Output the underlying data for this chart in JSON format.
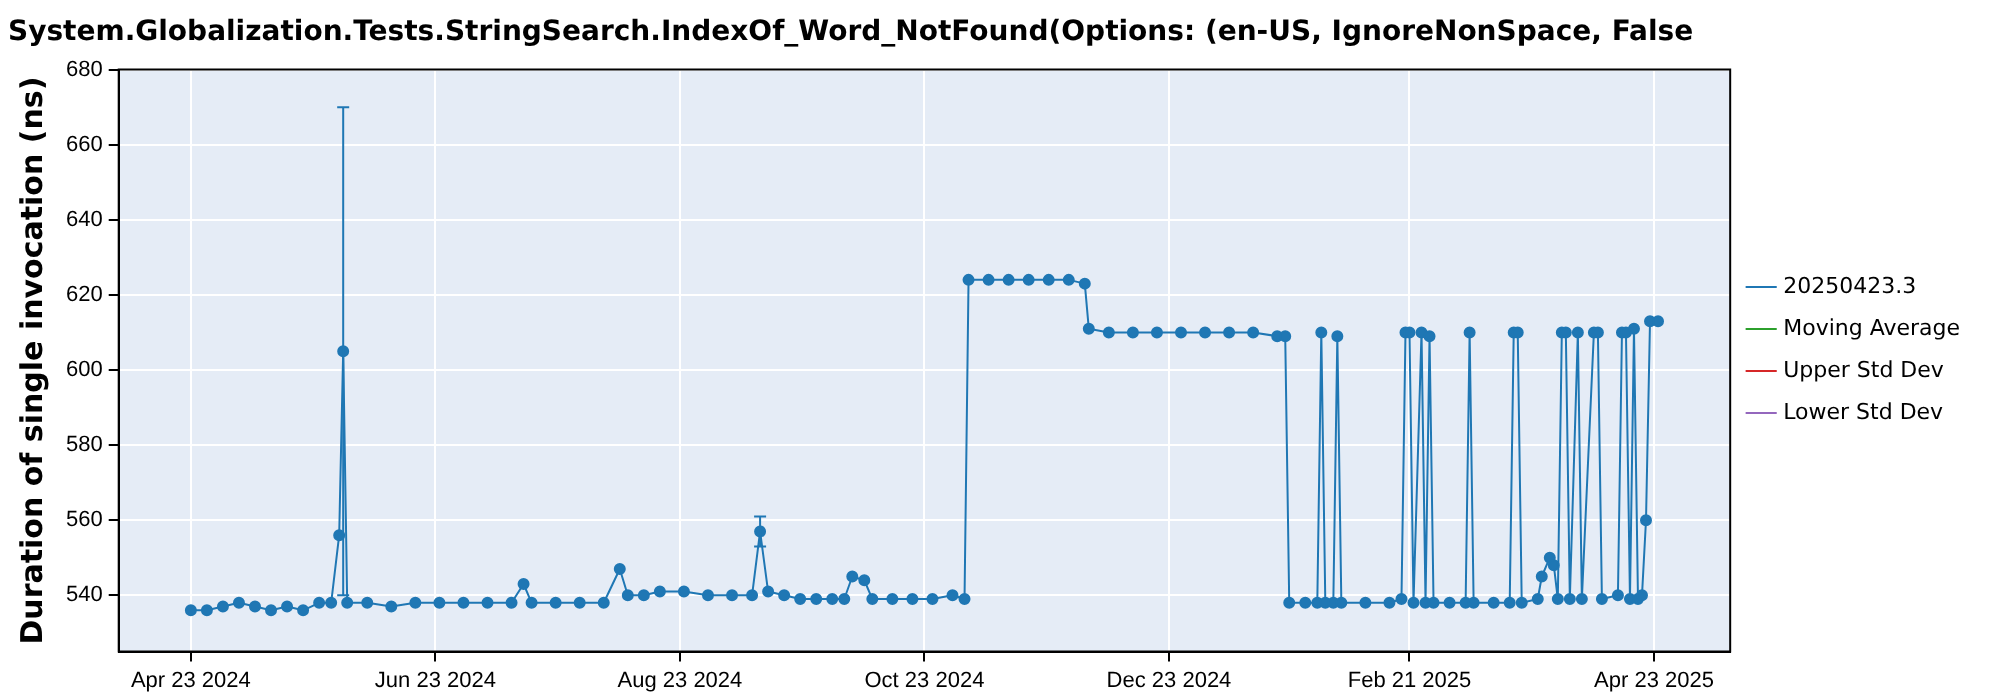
{
  "chart_data": {
    "type": "line",
    "title": "System.Globalization.Tests.StringSearch.IndexOf_Word_NotFound(Options: (en-US, IgnoreNonSpace, False",
    "ylabel": "Duration of single invocation (ns)",
    "x": [
      "2024-04-23",
      "2024-04-27",
      "2024-05-01",
      "2024-05-05",
      "2024-05-09",
      "2024-05-13",
      "2024-05-17",
      "2024-05-21",
      "2024-05-25",
      "2024-05-28",
      "2024-05-30",
      "2024-05-31",
      "2024-06-01",
      "2024-06-06",
      "2024-06-12",
      "2024-06-18",
      "2024-06-24",
      "2024-06-30",
      "2024-07-06",
      "2024-07-12",
      "2024-07-15",
      "2024-07-17",
      "2024-07-23",
      "2024-07-29",
      "2024-08-04",
      "2024-08-08",
      "2024-08-10",
      "2024-08-14",
      "2024-08-18",
      "2024-08-24",
      "2024-08-30",
      "2024-09-05",
      "2024-09-10",
      "2024-09-12",
      "2024-09-14",
      "2024-09-18",
      "2024-09-22",
      "2024-09-26",
      "2024-09-30",
      "2024-10-03",
      "2024-10-05",
      "2024-10-08",
      "2024-10-10",
      "2024-10-15",
      "2024-10-20",
      "2024-10-25",
      "2024-10-30",
      "2024-11-02",
      "2024-11-03",
      "2024-11-08",
      "2024-11-13",
      "2024-11-18",
      "2024-11-23",
      "2024-11-28",
      "2024-12-02",
      "2024-12-03",
      "2024-12-08",
      "2024-12-14",
      "2024-12-20",
      "2024-12-26",
      "2025-01-01",
      "2025-01-07",
      "2025-01-13",
      "2025-01-19",
      "2025-01-21",
      "2025-01-22",
      "2025-01-26",
      "2025-01-29",
      "2025-01-30",
      "2025-01-31",
      "2025-02-02",
      "2025-02-03",
      "2025-02-04",
      "2025-02-10",
      "2025-02-16",
      "2025-02-19",
      "2025-02-20",
      "2025-02-21",
      "2025-02-22",
      "2025-02-24",
      "2025-02-25",
      "2025-02-26",
      "2025-02-27",
      "2025-03-03",
      "2025-03-07",
      "2025-03-08",
      "2025-03-09",
      "2025-03-14",
      "2025-03-18",
      "2025-03-19",
      "2025-03-20",
      "2025-03-21",
      "2025-03-25",
      "2025-03-26",
      "2025-03-28",
      "2025-03-29",
      "2025-03-30",
      "2025-03-31",
      "2025-04-01",
      "2025-04-02",
      "2025-04-04",
      "2025-04-05",
      "2025-04-08",
      "2025-04-09",
      "2025-04-10",
      "2025-04-14",
      "2025-04-15",
      "2025-04-16",
      "2025-04-17",
      "2025-04-18",
      "2025-04-19",
      "2025-04-20",
      "2025-04-21",
      "2025-04-22",
      "2025-04-24"
    ],
    "series": [
      {
        "name": "20250423.3",
        "color": "#1f77b4",
        "values": [
          536,
          536,
          537,
          538,
          537,
          536,
          537,
          536,
          538,
          538,
          556,
          605,
          538,
          538,
          537,
          538,
          538,
          538,
          538,
          538,
          543,
          538,
          538,
          538,
          538,
          547,
          540,
          540,
          541,
          541,
          540,
          540,
          540,
          557,
          541,
          540,
          539,
          539,
          539,
          539,
          545,
          544,
          539,
          539,
          539,
          539,
          540,
          539,
          624,
          624,
          624,
          624,
          624,
          624,
          623,
          611,
          610,
          610,
          610,
          610,
          610,
          610,
          610,
          609,
          609,
          538,
          538,
          538,
          610,
          538,
          538,
          609,
          538,
          538,
          538,
          539,
          610,
          610,
          538,
          610,
          538,
          609,
          538,
          538,
          538,
          610,
          538,
          538,
          538,
          610,
          610,
          538,
          539,
          545,
          550,
          548,
          539,
          610,
          610,
          539,
          610,
          539,
          610,
          610,
          539,
          540,
          610,
          610,
          539,
          611,
          539,
          540,
          560,
          613,
          613
        ],
        "errors": [
          null,
          null,
          null,
          null,
          null,
          null,
          null,
          null,
          null,
          null,
          null,
          [
            540,
            670
          ],
          null,
          null,
          null,
          null,
          null,
          null,
          null,
          null,
          null,
          null,
          null,
          null,
          null,
          null,
          null,
          null,
          null,
          null,
          null,
          null,
          null,
          [
            553,
            561
          ],
          null,
          null,
          null,
          null,
          null,
          null,
          null,
          null,
          null,
          null,
          null,
          null,
          null,
          null,
          null,
          null,
          null,
          null,
          null,
          null,
          null,
          null,
          null,
          null,
          null,
          null,
          null,
          null,
          null,
          null,
          null,
          null,
          null,
          null,
          null,
          null,
          null,
          null,
          null,
          null,
          null,
          null,
          null,
          null,
          null,
          null,
          null,
          null,
          null,
          null,
          null,
          null,
          null,
          null,
          null,
          null,
          null,
          null,
          null,
          null,
          null,
          null,
          null,
          null,
          null,
          null,
          null,
          null,
          null,
          null,
          null,
          null,
          null,
          null,
          null,
          null,
          null,
          null,
          null,
          null,
          null
        ]
      },
      {
        "name": "Moving Average",
        "color": "#2ca02c",
        "values": [
          null,
          null,
          null,
          null,
          null,
          null,
          null,
          null,
          null,
          null,
          null,
          null,
          null,
          null,
          null,
          null,
          null,
          null,
          null,
          null,
          null,
          null,
          null,
          null,
          null,
          null,
          null,
          null,
          null,
          null,
          null,
          null,
          null,
          null,
          null,
          null,
          null,
          null,
          null,
          null,
          null,
          null,
          null,
          null,
          null,
          null,
          null,
          null,
          null,
          null,
          null,
          null,
          null,
          null,
          null,
          null,
          null,
          null,
          null,
          null,
          null,
          null,
          null,
          null,
          null,
          null,
          null,
          null,
          null,
          null,
          null,
          null,
          null,
          null,
          null,
          null,
          null,
          null,
          null,
          null,
          null,
          null,
          null,
          null,
          null,
          null,
          null,
          null,
          null,
          null,
          null,
          null,
          null,
          null,
          null,
          null,
          null,
          null,
          null,
          null,
          null,
          null,
          null,
          null,
          null,
          null,
          null,
          null,
          null,
          null,
          null,
          null,
          null,
          null,
          null
        ]
      },
      {
        "name": "Upper Std Dev",
        "color": "#d62728",
        "values": [
          null,
          null,
          null,
          null,
          null,
          null,
          null,
          null,
          null,
          null,
          null,
          null,
          null,
          null,
          null,
          null,
          null,
          null,
          null,
          null,
          null,
          null,
          null,
          null,
          null,
          null,
          null,
          null,
          null,
          null,
          null,
          null,
          null,
          null,
          null,
          null,
          null,
          null,
          null,
          null,
          null,
          null,
          null,
          null,
          null,
          null,
          null,
          null,
          null,
          null,
          null,
          null,
          null,
          null,
          null,
          null,
          null,
          null,
          null,
          null,
          null,
          null,
          null,
          null,
          null,
          null,
          null,
          null,
          null,
          null,
          null,
          null,
          null,
          null,
          null,
          null,
          null,
          null,
          null,
          null,
          null,
          null,
          null,
          null,
          null,
          null,
          null,
          null,
          null,
          null,
          null,
          null,
          null,
          null,
          null,
          null,
          null,
          null,
          null,
          null,
          null,
          null,
          null,
          null,
          null,
          null,
          null,
          null,
          null,
          null,
          null,
          null,
          null,
          null,
          null
        ]
      },
      {
        "name": "Lower Std Dev",
        "color": "#9467bd",
        "values": [
          null,
          null,
          null,
          null,
          null,
          null,
          null,
          null,
          null,
          null,
          null,
          null,
          null,
          null,
          null,
          null,
          null,
          null,
          null,
          null,
          null,
          null,
          null,
          null,
          null,
          null,
          null,
          null,
          null,
          null,
          null,
          null,
          null,
          null,
          null,
          null,
          null,
          null,
          null,
          null,
          null,
          null,
          null,
          null,
          null,
          null,
          null,
          null,
          null,
          null,
          null,
          null,
          null,
          null,
          null,
          null,
          null,
          null,
          null,
          null,
          null,
          null,
          null,
          null,
          null,
          null,
          null,
          null,
          null,
          null,
          null,
          null,
          null,
          null,
          null,
          null,
          null,
          null,
          null,
          null,
          null,
          null,
          null,
          null,
          null,
          null,
          null,
          null,
          null,
          null,
          null,
          null,
          null,
          null,
          null,
          null,
          null,
          null,
          null,
          null,
          null,
          null,
          null,
          null,
          null,
          null,
          null,
          null,
          null,
          null,
          null,
          null,
          null,
          null,
          null
        ]
      }
    ],
    "xlim": [
      "2024-04-05",
      "2025-05-12"
    ],
    "xticks": [
      {
        "value": "2024-04-23",
        "label": "Apr 23 2024"
      },
      {
        "value": "2024-06-23",
        "label": "Jun 23 2024"
      },
      {
        "value": "2024-08-23",
        "label": "Aug 23 2024"
      },
      {
        "value": "2024-10-23",
        "label": "Oct 23 2024"
      },
      {
        "value": "2024-12-23",
        "label": "Dec 23 2024"
      },
      {
        "value": "2025-02-21",
        "label": "Feb 21 2025"
      },
      {
        "value": "2025-04-23",
        "label": "Apr 23 2025"
      }
    ],
    "ylim": [
      525,
      680
    ],
    "yticks": [
      540,
      560,
      580,
      600,
      620,
      640,
      660,
      680
    ],
    "grid": true,
    "legend": "right",
    "marker": "circle",
    "line_style": "solid"
  }
}
